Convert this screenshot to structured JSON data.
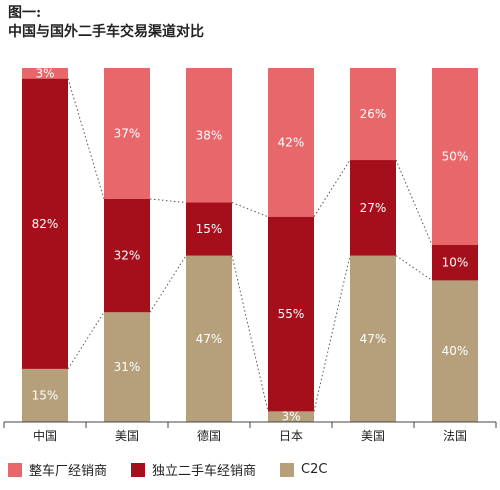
{
  "header": {
    "figure_label": "图一:",
    "title": "中国与国外二手车交易渠道对比"
  },
  "colors": {
    "manufacturer": "#e8676b",
    "independent": "#a50f1c",
    "c2c": "#b6a07b",
    "axis": "#444444"
  },
  "chart_data": {
    "type": "bar",
    "stacked": true,
    "normalized": true,
    "categories": [
      "中国",
      "美国",
      "德国",
      "日本",
      "美国",
      "法国"
    ],
    "series": [
      {
        "name": "C2C",
        "values": [
          15,
          31,
          47,
          3,
          47,
          40
        ],
        "labels": [
          "15%",
          "31%",
          "47%",
          "3%",
          "47%",
          "40%"
        ]
      },
      {
        "name": "独立二手车经销商",
        "values": [
          82,
          32,
          15,
          55,
          27,
          10
        ],
        "labels": [
          "82%",
          "32%",
          "15%",
          "55%",
          "27%",
          "10%"
        ]
      },
      {
        "name": "整车厂经销商",
        "values": [
          3,
          37,
          38,
          42,
          26,
          50
        ],
        "labels": [
          "3%",
          "37%",
          "38%",
          "42%",
          "26%",
          "50%"
        ]
      }
    ],
    "ylim": [
      0,
      100
    ],
    "connector_lines": "dotted",
    "legend_position": "bottom-left",
    "legend": [
      "整车厂经销商",
      "独立二手车经销商",
      "C2C"
    ]
  }
}
